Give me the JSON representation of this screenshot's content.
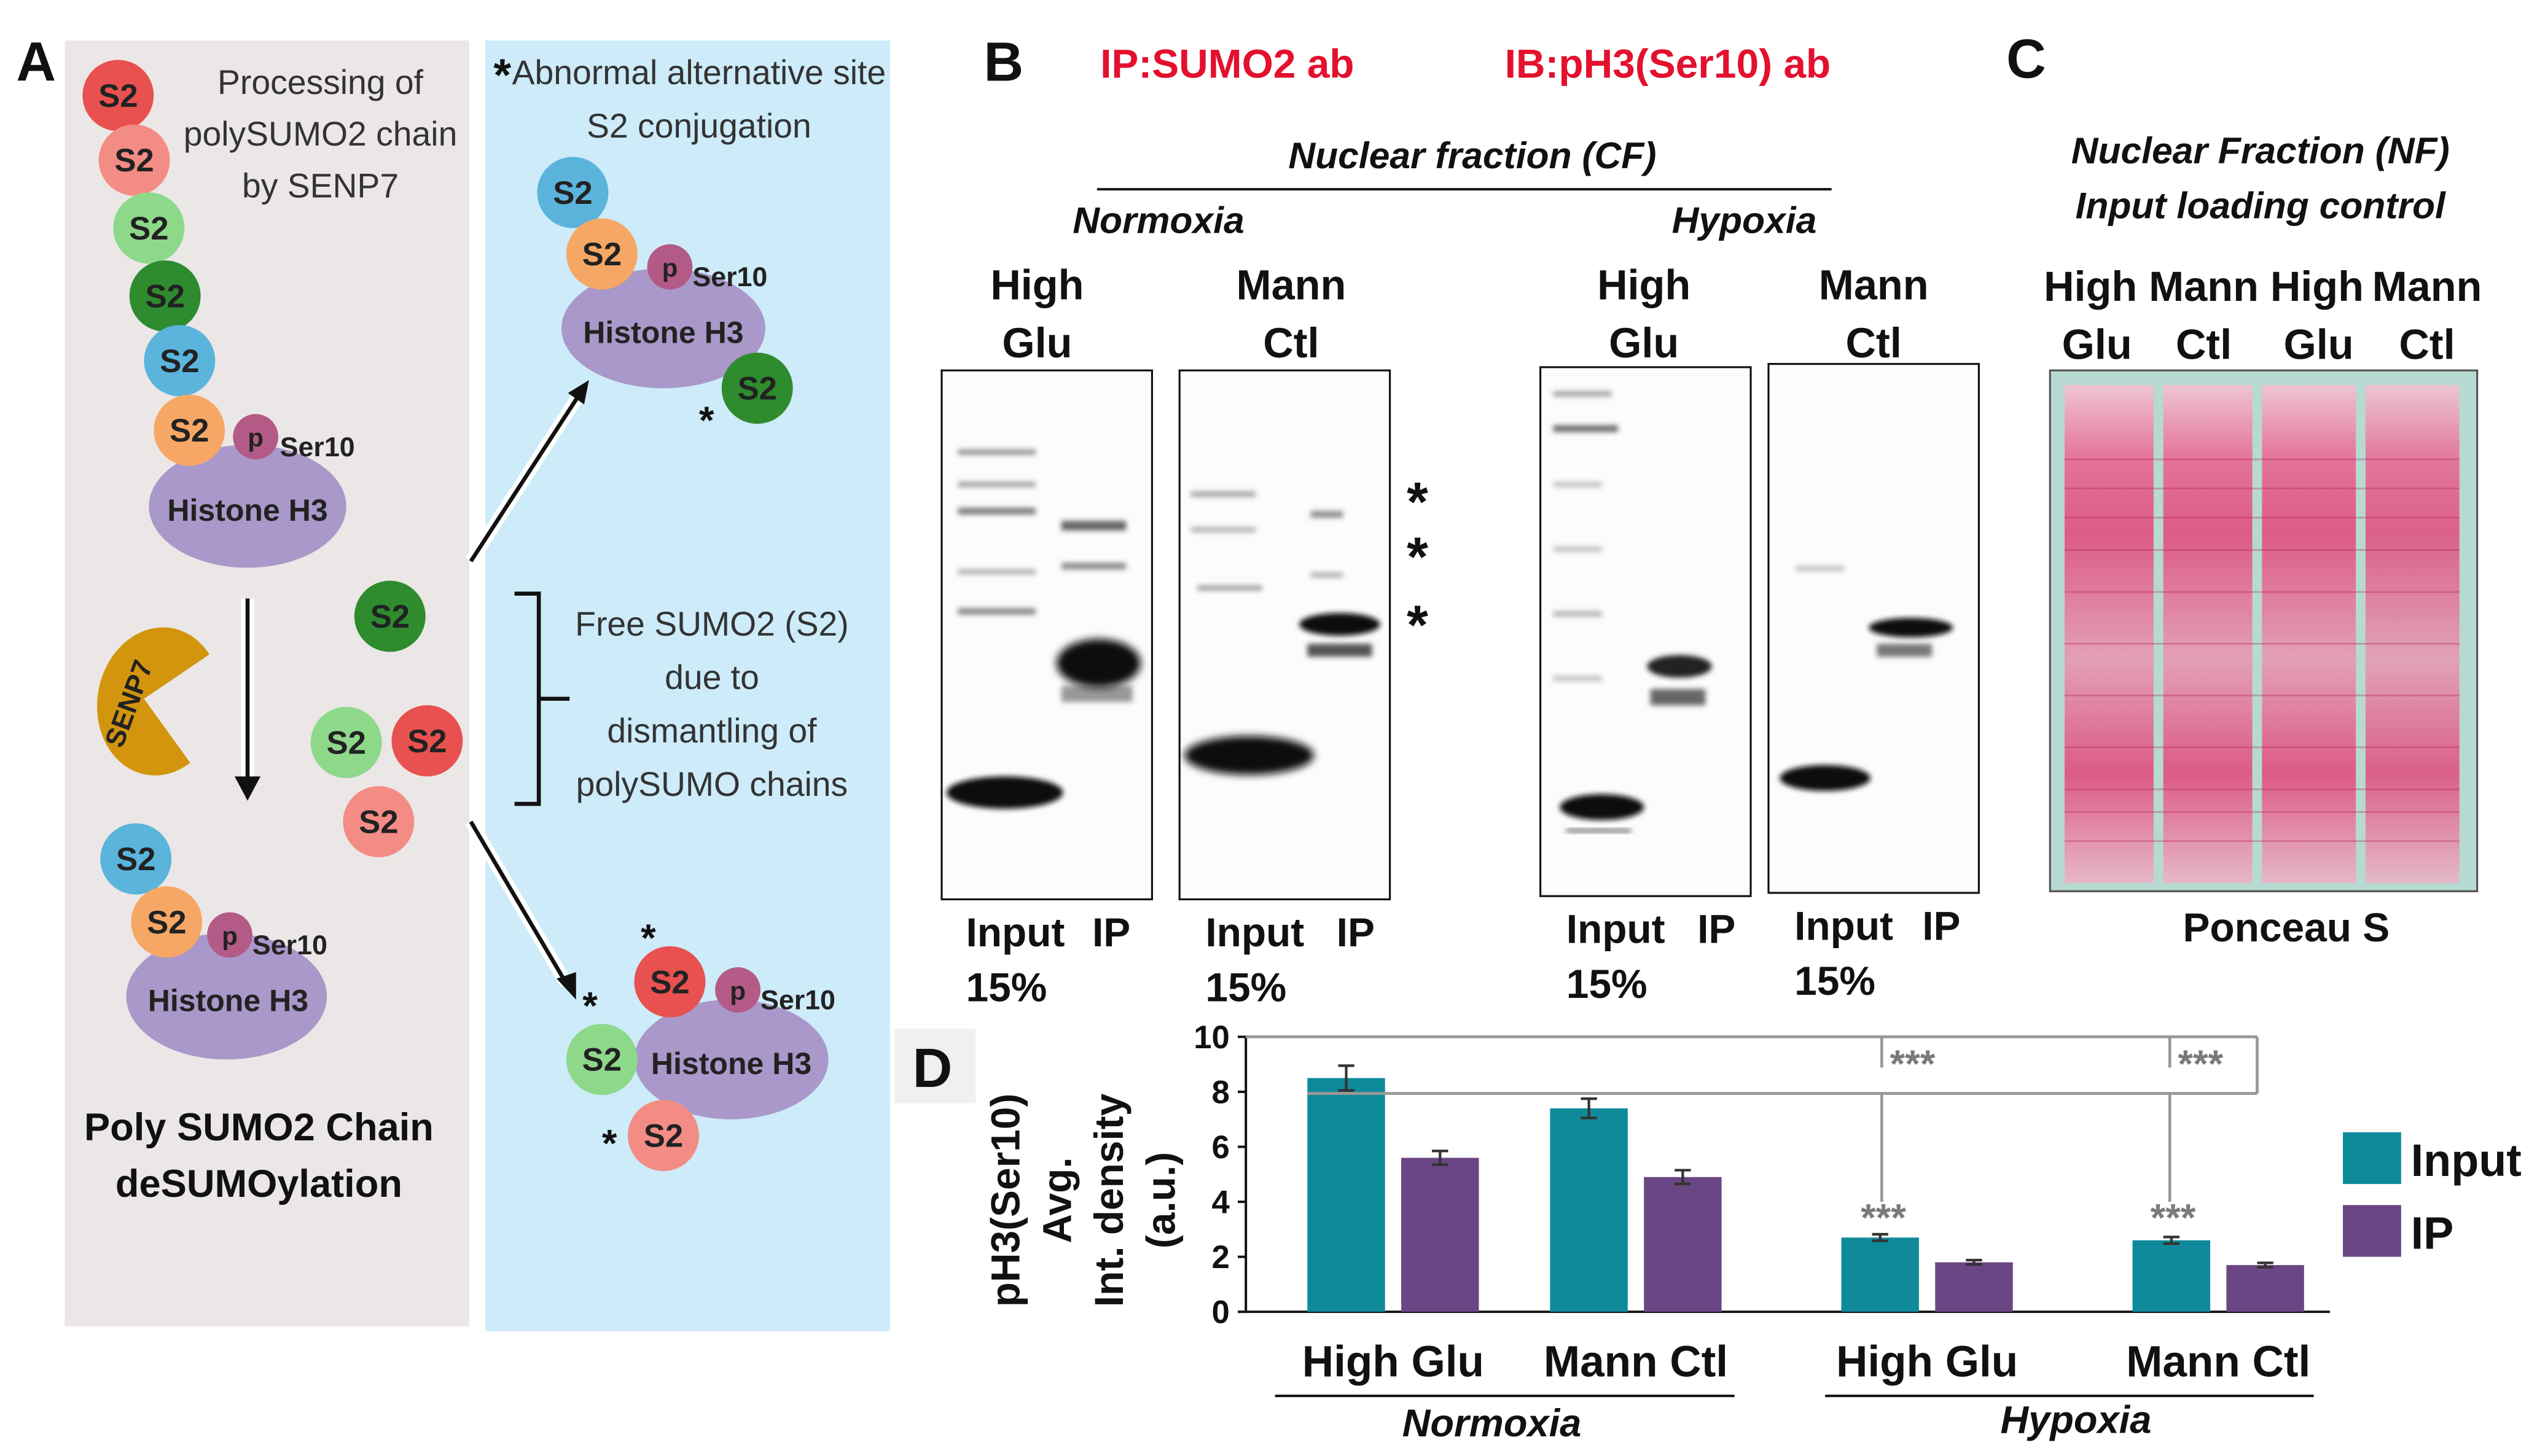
{
  "panel_a": {
    "letter": "A",
    "processing": [
      "Processing of",
      "polySUMO2 chain",
      "by SENP7"
    ],
    "abnormal": [
      "Abnormal alternative site",
      "S2 conjugation"
    ],
    "asterisk": "*",
    "free": [
      "Free SUMO2 (S2)",
      "due to",
      "dismantling of",
      "polySUMO chains"
    ],
    "chain_title": [
      "Poly SUMO2 Chain",
      "deSUMOylation"
    ],
    "s2": "S2",
    "p": "p",
    "ser10": "Ser10",
    "histone": "Histone H3",
    "senp7": "SENP7"
  },
  "panel_b": {
    "letter": "B",
    "ip": "IP:SUMO2 ab",
    "ib": "IB:pH3(Ser10) ab",
    "nuclear_fraction": "Nuclear fraction (CF)",
    "normoxia": "Normoxia",
    "hypoxia": "Hypoxia",
    "lanes": [
      {
        "top": "High",
        "bottom": "Glu"
      },
      {
        "top": "Mann",
        "bottom": "Ctl"
      },
      {
        "top": "High",
        "bottom": "Glu"
      },
      {
        "top": "Mann",
        "bottom": "Ctl"
      }
    ],
    "input": "Input",
    "ip_lane": "IP",
    "pct": "15%",
    "band_star": "*"
  },
  "panel_c": {
    "letter": "C",
    "title1": "Nuclear Fraction (NF)",
    "title2": "Input loading control",
    "lanes_top": [
      "High",
      "Mann",
      "High",
      "Mann"
    ],
    "lanes_bottom": [
      "Glu",
      "Ctl",
      "Glu",
      "Ctl"
    ],
    "caption": "Ponceau S"
  },
  "panel_d": {
    "letter": "D",
    "ylabel": [
      "pH3(Ser10)",
      "Avg.",
      "Int. density",
      "(a.u.)"
    ],
    "sig": "***",
    "group_normoxia": "Normoxia",
    "group_hypoxia": "Hypoxia"
  },
  "colors": {
    "input": "#0f8a9b",
    "ip": "#6b4684",
    "red_label": "#e3102e",
    "panel_a_bg": "#ebe7e6",
    "panel_a_right_bg": "#cdebf9"
  },
  "chart_data": {
    "type": "bar",
    "categories": [
      "High Glu",
      "Mann Ctl",
      "High Glu",
      "Mann Ctl"
    ],
    "series": [
      {
        "name": "Input",
        "values": [
          8.5,
          7.4,
          2.7,
          2.6
        ],
        "errors": [
          0.45,
          0.35,
          0.12,
          0.12
        ]
      },
      {
        "name": "IP",
        "values": [
          5.6,
          4.9,
          1.8,
          1.7
        ],
        "errors": [
          0.25,
          0.25,
          0.08,
          0.08
        ]
      }
    ],
    "ylim": [
      0,
      10
    ],
    "yticks": [
      0,
      2,
      4,
      6,
      8,
      10
    ],
    "grid": false,
    "legend": "right"
  }
}
